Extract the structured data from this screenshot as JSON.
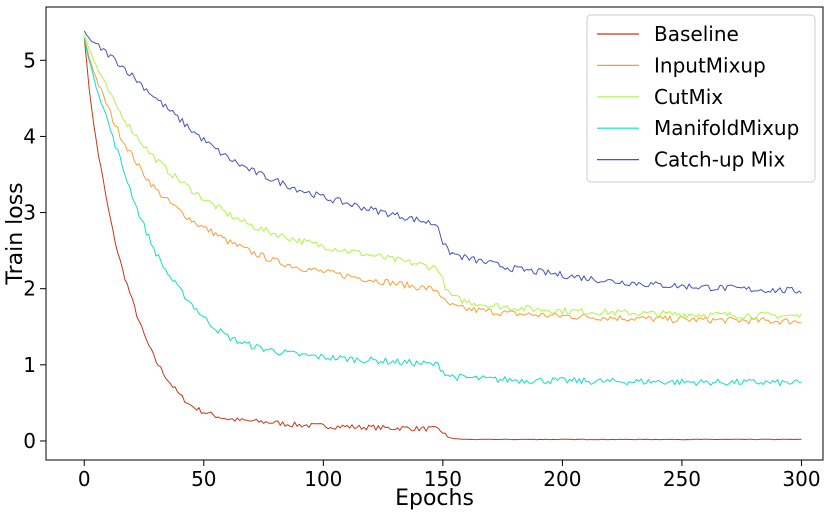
{
  "chart_data": {
    "type": "line",
    "xlabel": "Epochs",
    "ylabel": "Train loss",
    "xlim": [
      -16,
      309
    ],
    "ylim": [
      -0.25,
      5.7
    ],
    "xticks": [
      0,
      50,
      100,
      150,
      200,
      250,
      300
    ],
    "yticks": [
      0,
      1,
      2,
      3,
      4,
      5
    ],
    "grid": false,
    "legend_position": "top-right",
    "series": [
      {
        "name": "Baseline",
        "color": "#c0391b",
        "x": [
          0,
          2,
          4,
          6,
          8,
          10,
          12,
          14,
          16,
          18,
          20,
          22,
          24,
          26,
          28,
          30,
          32,
          34,
          36,
          38,
          40,
          42,
          44,
          46,
          48,
          50,
          55,
          60,
          65,
          70,
          75,
          80,
          85,
          90,
          95,
          100,
          105,
          110,
          115,
          120,
          125,
          130,
          135,
          140,
          145,
          148,
          150,
          152,
          155,
          160,
          170,
          180,
          200,
          220,
          240,
          260,
          280,
          300
        ],
        "y": [
          5.3,
          4.65,
          4.15,
          3.75,
          3.4,
          3.05,
          2.75,
          2.48,
          2.25,
          2.05,
          1.85,
          1.66,
          1.48,
          1.32,
          1.18,
          1.05,
          0.95,
          0.85,
          0.76,
          0.68,
          0.6,
          0.54,
          0.48,
          0.44,
          0.41,
          0.38,
          0.33,
          0.29,
          0.27,
          0.26,
          0.25,
          0.24,
          0.22,
          0.21,
          0.2,
          0.2,
          0.19,
          0.19,
          0.18,
          0.18,
          0.17,
          0.17,
          0.17,
          0.16,
          0.16,
          0.15,
          0.12,
          0.05,
          0.03,
          0.02,
          0.02,
          0.02,
          0.02,
          0.02,
          0.02,
          0.02,
          0.02,
          0.02
        ]
      },
      {
        "name": "InputMixup",
        "color": "#f5a03c",
        "x": [
          0,
          2,
          4,
          6,
          8,
          10,
          12,
          15,
          18,
          21,
          24,
          27,
          30,
          35,
          40,
          45,
          50,
          55,
          60,
          65,
          70,
          75,
          80,
          90,
          100,
          110,
          120,
          130,
          140,
          148,
          150,
          152,
          155,
          160,
          170,
          180,
          200,
          220,
          240,
          260,
          280,
          300
        ],
        "y": [
          5.3,
          5.05,
          4.85,
          4.68,
          4.52,
          4.38,
          4.22,
          4.02,
          3.85,
          3.7,
          3.55,
          3.42,
          3.3,
          3.15,
          3.02,
          2.9,
          2.8,
          2.72,
          2.62,
          2.55,
          2.48,
          2.42,
          2.36,
          2.28,
          2.22,
          2.17,
          2.12,
          2.07,
          2.02,
          1.98,
          1.85,
          1.8,
          1.76,
          1.73,
          1.7,
          1.67,
          1.64,
          1.62,
          1.6,
          1.59,
          1.58,
          1.57
        ]
      },
      {
        "name": "CutMix",
        "color": "#aef449",
        "x": [
          0,
          2,
          4,
          6,
          8,
          10,
          12,
          15,
          18,
          21,
          24,
          27,
          30,
          35,
          40,
          45,
          50,
          55,
          60,
          65,
          70,
          75,
          80,
          90,
          100,
          110,
          120,
          130,
          140,
          148,
          150,
          152,
          155,
          160,
          170,
          180,
          200,
          220,
          240,
          260,
          280,
          300
        ],
        "y": [
          5.35,
          5.15,
          5.0,
          4.86,
          4.72,
          4.6,
          4.48,
          4.32,
          4.17,
          4.04,
          3.92,
          3.8,
          3.7,
          3.55,
          3.42,
          3.3,
          3.18,
          3.08,
          2.98,
          2.9,
          2.83,
          2.77,
          2.72,
          2.63,
          2.56,
          2.5,
          2.44,
          2.38,
          2.32,
          2.27,
          2.1,
          1.95,
          1.88,
          1.83,
          1.78,
          1.75,
          1.71,
          1.69,
          1.67,
          1.66,
          1.65,
          1.64
        ]
      },
      {
        "name": "ManifoldMixup",
        "color": "#1ad8c8",
        "x": [
          0,
          2,
          4,
          6,
          8,
          10,
          12,
          14,
          16,
          18,
          20,
          22,
          24,
          26,
          28,
          30,
          33,
          36,
          40,
          45,
          50,
          55,
          60,
          65,
          70,
          75,
          80,
          90,
          100,
          110,
          120,
          130,
          140,
          148,
          150,
          152,
          155,
          160,
          170,
          180,
          200,
          220,
          240,
          260,
          280,
          300
        ],
        "y": [
          5.3,
          5.0,
          4.78,
          4.58,
          4.38,
          4.18,
          3.98,
          3.8,
          3.6,
          3.42,
          3.24,
          3.06,
          2.9,
          2.75,
          2.6,
          2.47,
          2.3,
          2.15,
          1.98,
          1.8,
          1.62,
          1.48,
          1.37,
          1.3,
          1.25,
          1.21,
          1.18,
          1.13,
          1.1,
          1.08,
          1.06,
          1.04,
          1.02,
          1.0,
          0.92,
          0.87,
          0.84,
          0.83,
          0.81,
          0.8,
          0.79,
          0.78,
          0.78,
          0.77,
          0.77,
          0.76
        ]
      },
      {
        "name": "Catch-up Mix",
        "color": "#4556b4",
        "x": [
          0,
          3,
          6,
          10,
          15,
          20,
          25,
          30,
          35,
          40,
          45,
          50,
          55,
          60,
          65,
          70,
          75,
          80,
          90,
          100,
          110,
          120,
          130,
          140,
          148,
          150,
          152,
          155,
          160,
          170,
          180,
          200,
          220,
          240,
          260,
          280,
          300
        ],
        "y": [
          5.38,
          5.25,
          5.18,
          5.08,
          4.95,
          4.8,
          4.65,
          4.5,
          4.36,
          4.22,
          4.08,
          3.95,
          3.83,
          3.72,
          3.63,
          3.55,
          3.48,
          3.42,
          3.3,
          3.2,
          3.12,
          3.04,
          2.97,
          2.9,
          2.84,
          2.6,
          2.5,
          2.45,
          2.4,
          2.33,
          2.26,
          2.18,
          2.1,
          2.05,
          2.02,
          1.99,
          1.97
        ]
      }
    ]
  }
}
